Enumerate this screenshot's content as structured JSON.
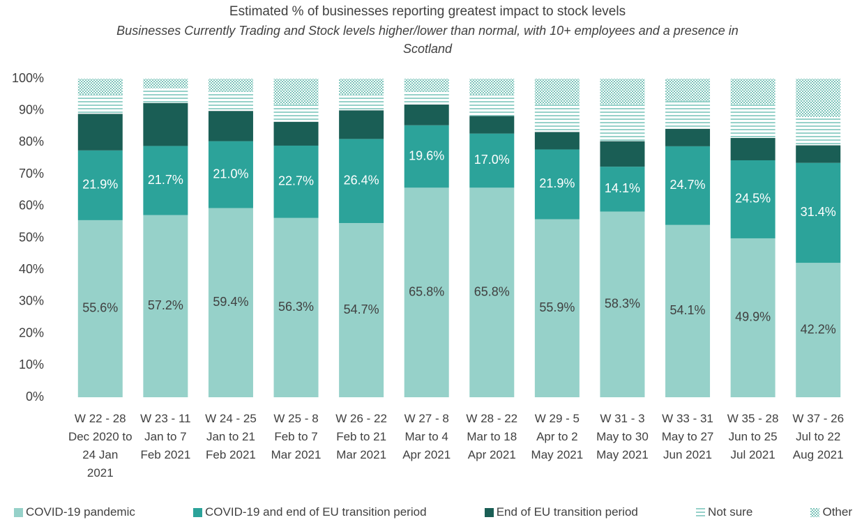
{
  "chart_data": {
    "type": "stacked-bar",
    "title": "Estimated % of businesses reporting greatest impact to stock levels",
    "subtitle": "Businesses Currently Trading and Stock levels higher/lower than normal, with 10+ employees and a presence in Scotland",
    "categories": [
      "W 22 - 28 Dec 2020 to 24 Jan 2021",
      "W 23 - 11 Jan to 7 Feb 2021",
      "W 24 - 25 Jan to 21 Feb 2021",
      "W 25 - 8 Feb to 7 Mar 2021",
      "W 26 - 22 Feb to 21 Mar 2021",
      "W 27 - 8 Mar to 4 Apr 2021",
      "W 28 - 22 Mar to 18 Apr 2021",
      "W 29 - 5 Apr to 2 May 2021",
      "W 31 - 3 May to 30 May 2021",
      "W 33 - 31 May to 27 Jun 2021",
      "W 35 - 28 Jun to 25 Jul 2021",
      "W 37 - 26 Jul to 22 Aug 2021"
    ],
    "series": [
      {
        "name": "COVID-19 pandemic",
        "color": "#96d1c9",
        "label_color": "#404040",
        "values": [
          55.6,
          57.2,
          59.4,
          56.3,
          54.7,
          65.8,
          65.8,
          55.9,
          58.3,
          54.1,
          49.9,
          42.2
        ],
        "value_labels": [
          "55.6%",
          "57.2%",
          "59.4%",
          "56.3%",
          "54.7%",
          "65.8%",
          "65.8%",
          "55.9%",
          "58.3%",
          "54.1%",
          "49.9%",
          "42.2%"
        ]
      },
      {
        "name": "COVID-19 and end of EU transition period",
        "color": "#2ca39a",
        "label_color": "#ffffff",
        "values": [
          21.9,
          21.7,
          21.0,
          22.7,
          26.4,
          19.6,
          17.0,
          21.9,
          14.1,
          24.7,
          24.5,
          31.4
        ],
        "value_labels": [
          "21.9%",
          "21.7%",
          "21.0%",
          "22.7%",
          "26.4%",
          "19.6%",
          "17.0%",
          "21.9%",
          "14.1%",
          "24.7%",
          "24.5%",
          "31.4%"
        ]
      },
      {
        "name": "End of EU transition period",
        "color": "#1a5e55",
        "values": [
          11.5,
          13.5,
          9.5,
          7.5,
          9.0,
          6.5,
          5.5,
          5.5,
          8.0,
          5.5,
          7.0,
          5.5
        ]
      },
      {
        "name": "Not sure",
        "color": "#96d1c9",
        "pattern": "horizontal-lines",
        "values": [
          6.0,
          4.6,
          6.1,
          5.5,
          4.9,
          4.1,
          6.7,
          8.7,
          11.6,
          8.7,
          10.6,
          8.9
        ]
      },
      {
        "name": "Other",
        "color": "#96d1c9",
        "pattern": "checker",
        "values": [
          5.0,
          3.0,
          4.0,
          8.0,
          5.0,
          4.0,
          5.0,
          8.0,
          8.0,
          7.0,
          8.0,
          12.0
        ]
      }
    ],
    "ylim": [
      0,
      100
    ],
    "yticks": [
      {
        "value": 0,
        "label": "0%"
      },
      {
        "value": 10,
        "label": "10%"
      },
      {
        "value": 20,
        "label": "20%"
      },
      {
        "value": 30,
        "label": "30%"
      },
      {
        "value": 40,
        "label": "40%"
      },
      {
        "value": 50,
        "label": "50%"
      },
      {
        "value": 60,
        "label": "60%"
      },
      {
        "value": 70,
        "label": "70%"
      },
      {
        "value": 80,
        "label": "80%"
      },
      {
        "value": 90,
        "label": "90%"
      },
      {
        "value": 100,
        "label": "100%"
      }
    ],
    "legend": "bottom"
  }
}
